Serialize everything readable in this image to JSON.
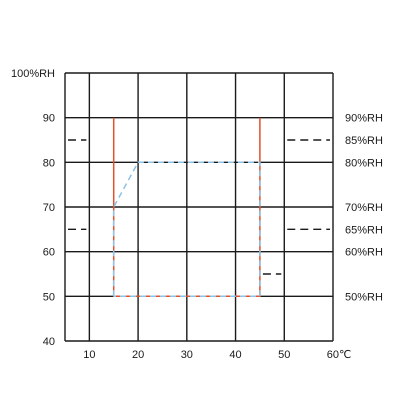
{
  "chart_data": {
    "type": "line",
    "title": "",
    "xlabel": "",
    "ylabel": "",
    "xlim": [
      5,
      60
    ],
    "ylim": [
      40,
      100
    ],
    "grid": true,
    "x_ticks": [
      {
        "value": 10,
        "label": "10"
      },
      {
        "value": 20,
        "label": "20"
      },
      {
        "value": 30,
        "label": "30"
      },
      {
        "value": 40,
        "label": "40"
      },
      {
        "value": 50,
        "label": "50"
      },
      {
        "value": 60,
        "label": "60℃"
      }
    ],
    "y_ticks": [
      {
        "value": 100,
        "label": "100%RH"
      },
      {
        "value": 90,
        "label": "90"
      },
      {
        "value": 80,
        "label": "80"
      },
      {
        "value": 70,
        "label": "70"
      },
      {
        "value": 60,
        "label": "60"
      },
      {
        "value": 50,
        "label": "50"
      },
      {
        "value": 40,
        "label": "40"
      }
    ],
    "right_labels": [
      {
        "value": 90,
        "label": "90%RH"
      },
      {
        "value": 85,
        "label": "85%RH"
      },
      {
        "value": 80,
        "label": "80%RH"
      },
      {
        "value": 70,
        "label": "70%RH"
      },
      {
        "value": 65,
        "label": "65%RH"
      },
      {
        "value": 60,
        "label": "60%RH"
      },
      {
        "value": 50,
        "label": "50%RH"
      }
    ],
    "series": [
      {
        "color": "#e0522a",
        "style": "solid",
        "points": [
          [
            15,
            90
          ],
          [
            15,
            70
          ],
          [
            15,
            50
          ],
          [
            45,
            50
          ],
          [
            45,
            90
          ]
        ]
      },
      {
        "color": "#8cc2e8",
        "style": "dashed",
        "points": [
          [
            15,
            50
          ],
          [
            15,
            70
          ],
          [
            20,
            80
          ],
          [
            45,
            80
          ],
          [
            45,
            50
          ],
          [
            15,
            50
          ]
        ]
      }
    ],
    "reference_marks": [
      {
        "y": 85,
        "x": [
          5,
          10
        ]
      },
      {
        "y": 85,
        "x": [
          50,
          60
        ]
      },
      {
        "y": 65,
        "x": [
          5,
          10
        ]
      },
      {
        "y": 65,
        "x": [
          50,
          60
        ]
      },
      {
        "y": 55,
        "x": [
          45,
          50
        ]
      }
    ]
  }
}
